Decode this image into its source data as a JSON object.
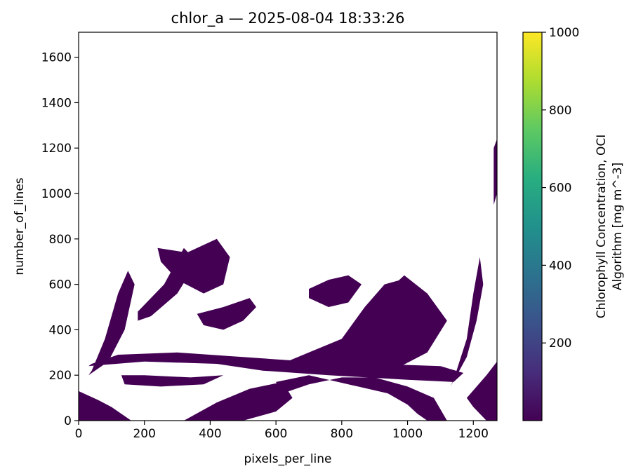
{
  "chart_data": {
    "type": "heatmap",
    "title": "chlor_a — 2025-08-04 18:33:26",
    "xlabel": "pixels_per_line",
    "ylabel": "number_of_lines",
    "xlim": [
      0,
      1272
    ],
    "ylim": [
      0,
      1710
    ],
    "x_ticks": [
      0,
      200,
      400,
      600,
      800,
      1000,
      1200
    ],
    "y_ticks": [
      0,
      200,
      400,
      600,
      800,
      1000,
      1200,
      1400,
      1600
    ],
    "grid": false,
    "colormap": "viridis",
    "colorbar": {
      "label_line1": "Chlorophyll Concentration, OCI",
      "label_line2": "Algorithm [mg m^-3]",
      "range": [
        0.001,
        1000
      ],
      "ticks": [
        200,
        400,
        600,
        800,
        1000
      ]
    },
    "observed_value_color": "#440154",
    "regions": [
      {
        "x": [
          0,
          60,
          100,
          160,
          100,
          40,
          0
        ],
        "y": [
          130,
          90,
          60,
          0,
          0,
          0,
          0
        ]
      },
      {
        "x": [
          30,
          90,
          140,
          170,
          150,
          120,
          80,
          40
        ],
        "y": [
          200,
          260,
          400,
          600,
          660,
          560,
          360,
          220
        ]
      },
      {
        "x": [
          30,
          200,
          420,
          560,
          760,
          1000,
          1140,
          1170,
          1100,
          900,
          700,
          500,
          300,
          120,
          40
        ],
        "y": [
          240,
          260,
          250,
          220,
          200,
          180,
          170,
          210,
          240,
          250,
          260,
          280,
          300,
          290,
          250
        ]
      },
      {
        "x": [
          130,
          200,
          340,
          440,
          380,
          250,
          140
        ],
        "y": [
          200,
          200,
          190,
          200,
          160,
          150,
          160
        ]
      },
      {
        "x": [
          180,
          260,
          320,
          360,
          300,
          220,
          180
        ],
        "y": [
          480,
          600,
          760,
          700,
          560,
          460,
          440
        ]
      },
      {
        "x": [
          240,
          330,
          420,
          460,
          440,
          380,
          300,
          250
        ],
        "y": [
          760,
          740,
          800,
          720,
          600,
          560,
          620,
          700
        ]
      },
      {
        "x": [
          320,
          420,
          520,
          620,
          650,
          600,
          500,
          400,
          330
        ],
        "y": [
          0,
          80,
          140,
          170,
          100,
          40,
          0,
          0,
          0
        ]
      },
      {
        "x": [
          600,
          700,
          820,
          940,
          1000,
          1030,
          1060,
          1080,
          1120,
          1080,
          1000,
          900,
          800,
          700,
          620
        ],
        "y": [
          170,
          200,
          160,
          120,
          70,
          30,
          0,
          0,
          0,
          100,
          150,
          190,
          190,
          160,
          120
        ]
      },
      {
        "x": [
          600,
          700,
          800,
          870,
          930,
          980,
          1000,
          1020,
          1000,
          940,
          860,
          760,
          660,
          600
        ],
        "y": [
          240,
          300,
          360,
          500,
          600,
          620,
          580,
          420,
          300,
          250,
          230,
          230,
          230,
          240
        ]
      },
      {
        "x": [
          820,
          900,
          990,
          1060,
          1120,
          1060,
          980,
          900,
          820
        ],
        "y": [
          320,
          520,
          640,
          560,
          440,
          300,
          240,
          230,
          260
        ]
      },
      {
        "x": [
          1140,
          1180,
          1200,
          1220,
          1230,
          1210,
          1180,
          1150,
          1130
        ],
        "y": [
          180,
          360,
          560,
          720,
          600,
          440,
          280,
          200,
          150
        ]
      },
      {
        "x": [
          1180,
          1240,
          1272,
          1272,
          1240,
          1200
        ],
        "y": [
          100,
          200,
          260,
          0,
          0,
          60
        ]
      },
      {
        "x": [
          360,
          440,
          520,
          540,
          500,
          440,
          380
        ],
        "y": [
          470,
          500,
          540,
          500,
          440,
          400,
          420
        ]
      },
      {
        "x": [
          700,
          760,
          820,
          860,
          820,
          760,
          700
        ],
        "y": [
          580,
          620,
          640,
          600,
          520,
          500,
          540
        ]
      },
      {
        "x": [
          1262,
          1272,
          1272,
          1262
        ],
        "y": [
          950,
          1000,
          1240,
          1200
        ]
      }
    ]
  }
}
